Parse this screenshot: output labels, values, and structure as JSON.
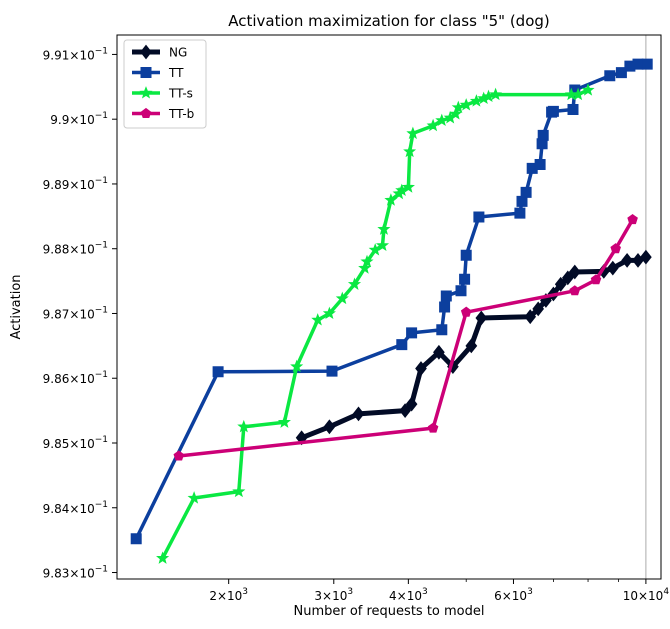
{
  "chart_data": {
    "type": "line",
    "title": "Activation maximization for class \"5\" (dog)",
    "xlabel": "Number of requests to model",
    "ylabel": "Activation",
    "xscale": "log",
    "xlim": [
      1300,
      10600
    ],
    "ylim": [
      0.9829,
      0.9913
    ],
    "grid": false,
    "legend": "top-left",
    "vline_x": 10000,
    "x_ticks": [
      {
        "value": 2000,
        "base": "2",
        "exp": "3"
      },
      {
        "value": 3000,
        "base": "3",
        "exp": "3"
      },
      {
        "value": 4000,
        "base": "4",
        "exp": "3"
      },
      {
        "value": 6000,
        "base": "6",
        "exp": "3"
      },
      {
        "value": 10000,
        "base": "10",
        "exp": "4"
      }
    ],
    "y_ticks": [
      {
        "value": 0.983,
        "base": "9.83",
        "exp": "−1"
      },
      {
        "value": 0.984,
        "base": "9.84",
        "exp": "−1"
      },
      {
        "value": 0.985,
        "base": "9.85",
        "exp": "−1"
      },
      {
        "value": 0.986,
        "base": "9.86",
        "exp": "−1"
      },
      {
        "value": 0.987,
        "base": "9.87",
        "exp": "−1"
      },
      {
        "value": 0.988,
        "base": "9.88",
        "exp": "−1"
      },
      {
        "value": 0.989,
        "base": "9.89",
        "exp": "−1"
      },
      {
        "value": 0.99,
        "base": "9.9",
        "exp": "−1"
      },
      {
        "value": 0.991,
        "base": "9.91",
        "exp": "−1"
      }
    ],
    "series": [
      {
        "name": "NG",
        "color": "#020b26",
        "marker": "diamond",
        "x": [
          2650,
          2950,
          3300,
          3950,
          4050,
          4200,
          4500,
          4750,
          5100,
          5300,
          6400,
          6600,
          6800,
          7000,
          7200,
          7400,
          7600,
          8500,
          8800,
          9300,
          9700,
          10000
        ],
        "y": [
          0.98508,
          0.98525,
          0.98545,
          0.9855,
          0.9856,
          0.98615,
          0.9864,
          0.98618,
          0.9865,
          0.98693,
          0.98695,
          0.98707,
          0.9872,
          0.9873,
          0.98745,
          0.98755,
          0.98764,
          0.98765,
          0.9877,
          0.98782,
          0.98782,
          0.98787
        ]
      },
      {
        "name": "TT",
        "color": "#0c3f9e",
        "marker": "square",
        "x": [
          1400,
          1920,
          2980,
          3900,
          4050,
          4550,
          4600,
          4630,
          4900,
          4970,
          5000,
          5250,
          6150,
          6200,
          6300,
          6450,
          6650,
          6700,
          6730,
          6950,
          7000,
          7550,
          7600,
          8700,
          9100,
          9400,
          9700,
          10050
        ],
        "y": [
          0.98352,
          0.9861,
          0.98611,
          0.98652,
          0.9867,
          0.98675,
          0.9871,
          0.98727,
          0.98735,
          0.98753,
          0.9879,
          0.98849,
          0.98855,
          0.98873,
          0.98887,
          0.98924,
          0.9893,
          0.98962,
          0.98975,
          0.99011,
          0.99012,
          0.99015,
          0.99045,
          0.99067,
          0.99072,
          0.99082,
          0.99085,
          0.99085
        ]
      },
      {
        "name": "TT-s",
        "color": "#0ae842",
        "marker": "star",
        "x": [
          1550,
          1750,
          2080,
          2120,
          2480,
          2600,
          2820,
          2950,
          3100,
          3250,
          3380,
          3410,
          3520,
          3620,
          3640,
          3740,
          3860,
          3900,
          4000,
          4020,
          4070,
          4400,
          4550,
          4700,
          4800,
          4850,
          5000,
          5200,
          5350,
          5450,
          5600,
          7500,
          7700,
          8000
        ],
        "y": [
          0.98322,
          0.98415,
          0.98425,
          0.98525,
          0.98532,
          0.98618,
          0.9869,
          0.987,
          0.98723,
          0.98745,
          0.9877,
          0.9878,
          0.98798,
          0.98805,
          0.9883,
          0.98875,
          0.98885,
          0.9889,
          0.98895,
          0.9895,
          0.98978,
          0.9899,
          0.98998,
          0.99002,
          0.99008,
          0.99018,
          0.99022,
          0.99028,
          0.99032,
          0.99035,
          0.99038,
          0.99038,
          0.99038,
          0.99045
        ]
      },
      {
        "name": "TT-b",
        "color": "#cc0077",
        "marker": "pentagon",
        "x": [
          1650,
          4400,
          5000,
          7600,
          8250,
          8900,
          9500
        ],
        "y": [
          0.9848,
          0.98523,
          0.98702,
          0.98735,
          0.98752,
          0.988,
          0.98845
        ]
      }
    ]
  }
}
